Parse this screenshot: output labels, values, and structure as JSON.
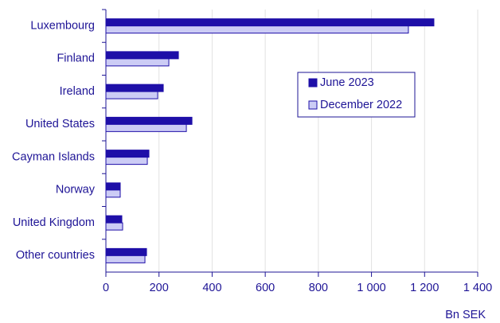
{
  "chart_data": {
    "type": "hbar",
    "categories": [
      "Luxembourg",
      "Finland",
      "Ireland",
      "United States",
      "Cayman Islands",
      "Norway",
      "United Kingdom",
      "Other countries"
    ],
    "series": [
      {
        "name": "June 2023",
        "color": "#1e0fa8",
        "values": [
          1235,
          273,
          216,
          324,
          162,
          54,
          60,
          153
        ]
      },
      {
        "name": "December 2022",
        "color": "#ccccf5",
        "values": [
          1139,
          237,
          195,
          303,
          156,
          54,
          63,
          147
        ]
      }
    ],
    "xlim": [
      0,
      1400
    ],
    "xticks": [
      0,
      200,
      400,
      600,
      800,
      {
        "value": 1000,
        "label": "1 000"
      },
      {
        "value": 1200,
        "label": "1 200"
      },
      {
        "value": 1400,
        "label": "1 400"
      }
    ],
    "xlabel": "Bn SEK",
    "grid": true
  }
}
